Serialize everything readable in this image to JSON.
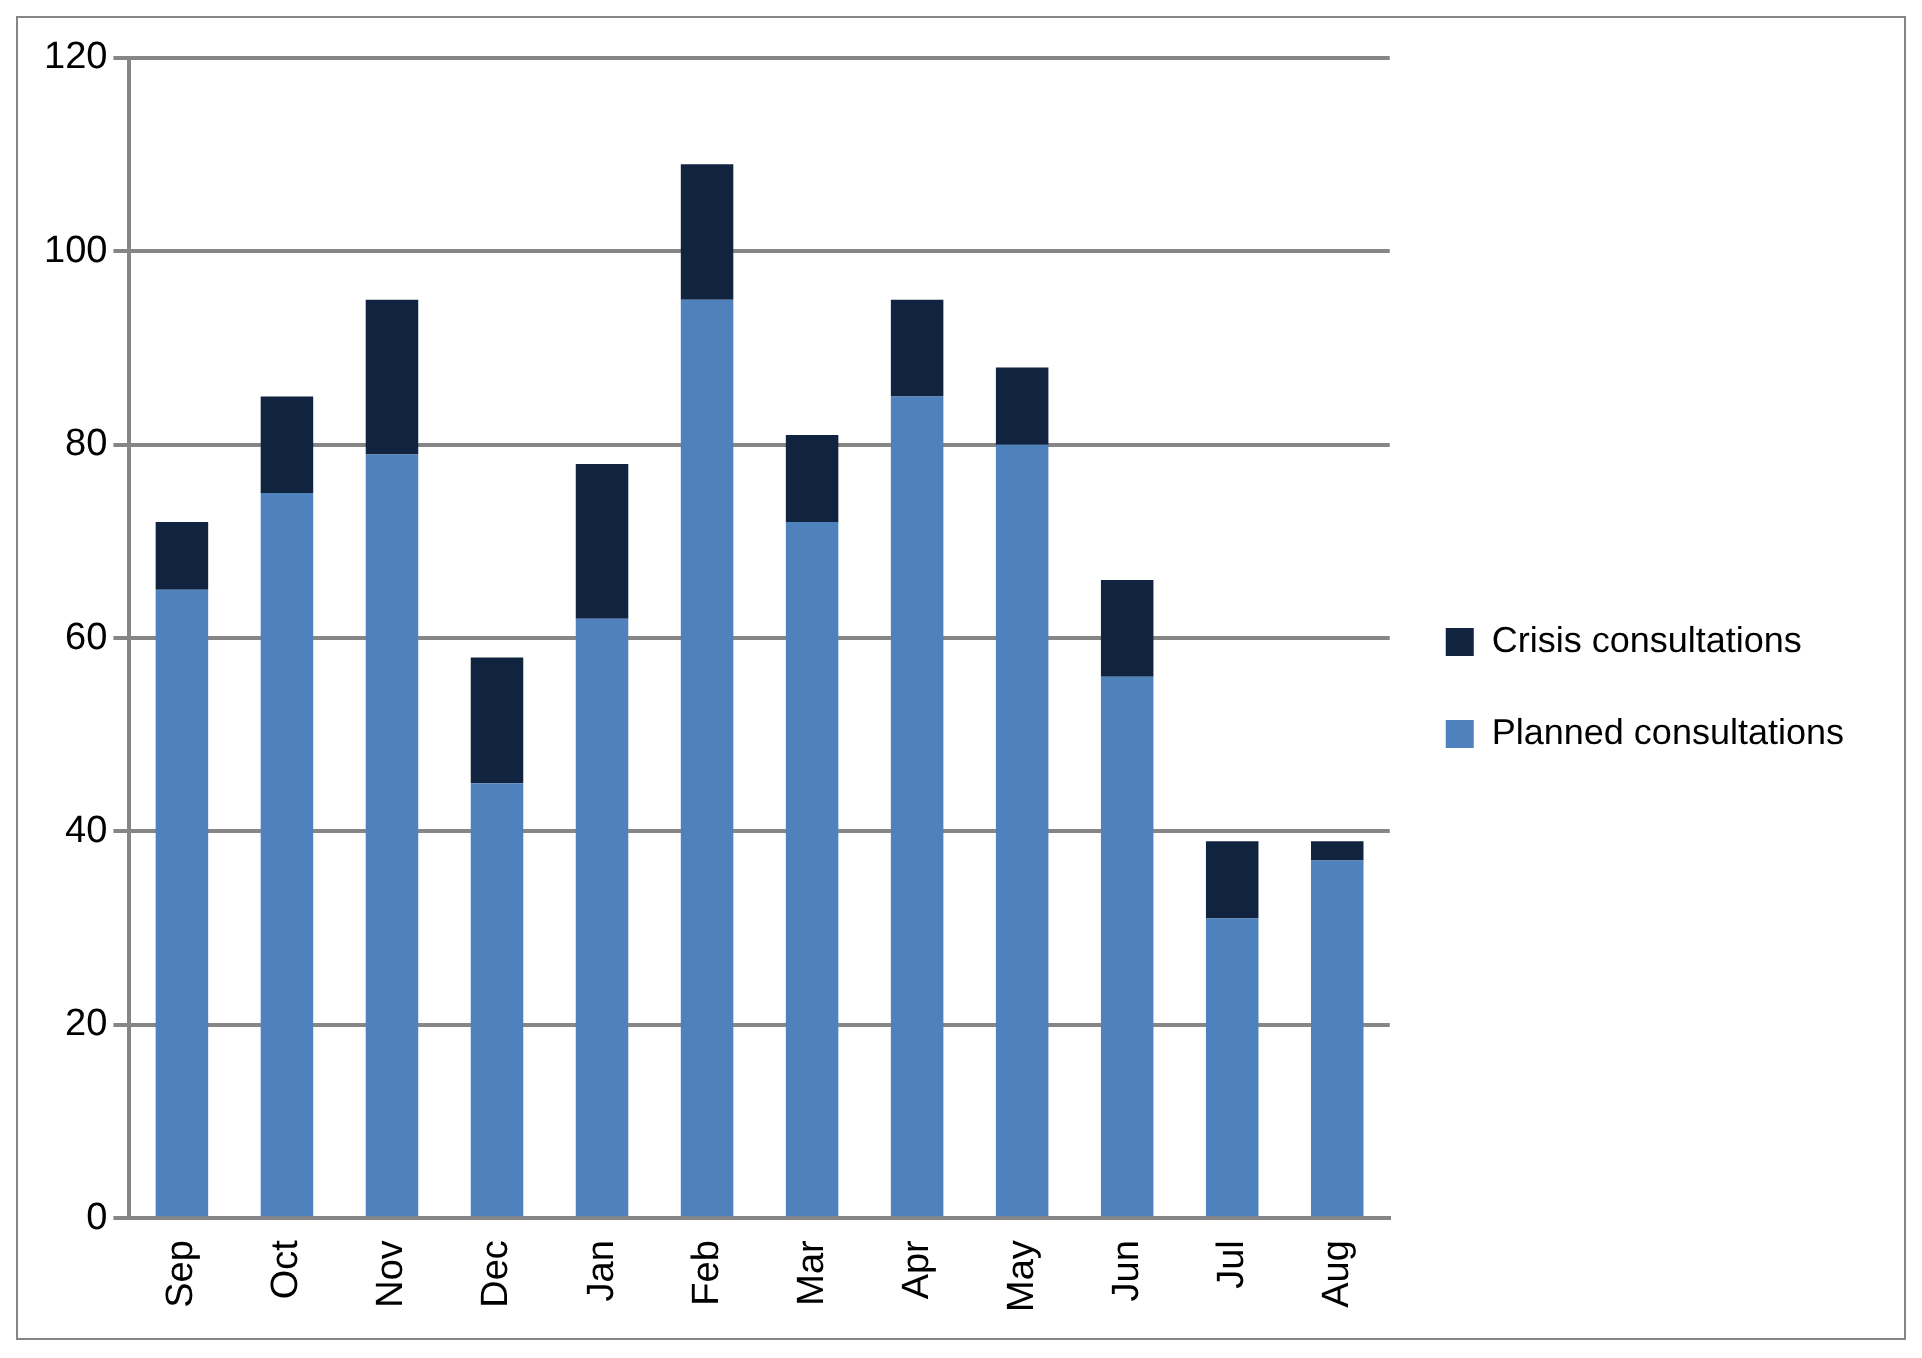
{
  "chart_data": {
    "type": "bar",
    "stacked": true,
    "categories": [
      "Sep",
      "Oct",
      "Nov",
      "Dec",
      "Jan",
      "Feb",
      "Mar",
      "Apr",
      "May",
      "Jun",
      "Jul",
      "Aug"
    ],
    "series": [
      {
        "name": "Planned consultations",
        "color": "#4f81bd",
        "values": [
          65,
          75,
          79,
          45,
          62,
          95,
          72,
          85,
          80,
          56,
          31,
          37
        ]
      },
      {
        "name": "Crisis consultations",
        "color": "#10243f",
        "values": [
          7,
          10,
          16,
          13,
          16,
          14,
          9,
          10,
          8,
          10,
          8,
          2
        ]
      }
    ],
    "ylim": [
      0,
      120
    ],
    "yticks": [
      0,
      20,
      40,
      60,
      80,
      100,
      120
    ],
    "grid": "y",
    "legend": "right"
  }
}
